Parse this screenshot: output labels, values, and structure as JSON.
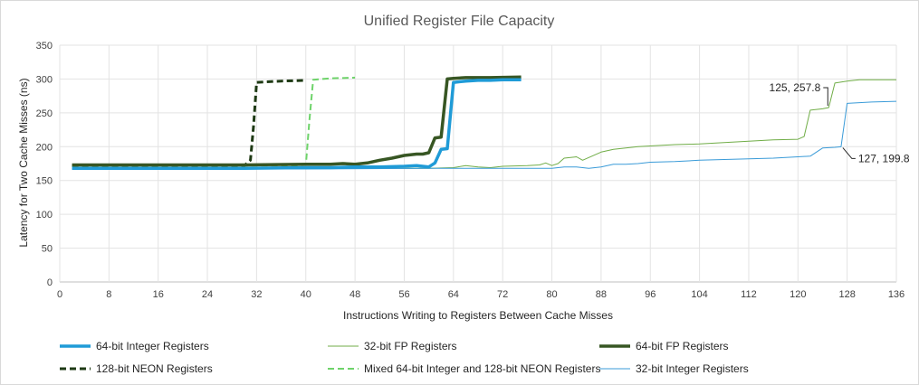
{
  "chart_data": {
    "type": "line",
    "title": "Unified Register File Capacity",
    "xlabel": "Instructions Writing to Registers Between Cache Misses",
    "ylabel": "Latency for Two Cache Misses (ns)",
    "xlim": [
      0,
      136
    ],
    "ylim": [
      0,
      350
    ],
    "x_ticks": [
      0,
      8,
      16,
      24,
      32,
      40,
      48,
      56,
      64,
      72,
      80,
      88,
      96,
      104,
      112,
      120,
      128,
      136
    ],
    "y_ticks": [
      0,
      50,
      100,
      150,
      200,
      250,
      300,
      350
    ],
    "grid": true,
    "legend_position": "bottom",
    "annotations": [
      {
        "text": "125, 257.8",
        "x": 125,
        "y": 257.8
      },
      {
        "text": "127, 199.8",
        "x": 127,
        "y": 199.8
      }
    ],
    "series": [
      {
        "name": "64-bit Integer Registers",
        "color": "#1f9bd7",
        "width": 3.5,
        "dash": "",
        "points": [
          [
            2,
            168
          ],
          [
            10,
            168
          ],
          [
            20,
            168
          ],
          [
            30,
            168
          ],
          [
            40,
            169
          ],
          [
            44,
            169
          ],
          [
            48,
            170
          ],
          [
            52,
            170
          ],
          [
            56,
            171
          ],
          [
            58,
            172
          ],
          [
            60,
            170
          ],
          [
            61,
            176
          ],
          [
            62,
            196
          ],
          [
            63,
            197
          ],
          [
            64,
            295
          ],
          [
            66,
            297
          ],
          [
            68,
            298
          ],
          [
            70,
            298
          ],
          [
            72,
            299
          ],
          [
            75,
            299
          ]
        ]
      },
      {
        "name": "32-bit FP Registers",
        "color": "#70ad47",
        "width": 1,
        "dash": "",
        "points": [
          [
            2,
            168
          ],
          [
            20,
            168
          ],
          [
            40,
            168
          ],
          [
            60,
            168
          ],
          [
            64,
            169
          ],
          [
            66,
            172
          ],
          [
            68,
            170
          ],
          [
            70,
            169
          ],
          [
            72,
            171
          ],
          [
            76,
            172
          ],
          [
            78,
            173
          ],
          [
            79,
            176
          ],
          [
            80,
            172
          ],
          [
            81,
            175
          ],
          [
            82,
            183
          ],
          [
            84,
            185
          ],
          [
            85,
            180
          ],
          [
            86,
            184
          ],
          [
            88,
            192
          ],
          [
            90,
            196
          ],
          [
            92,
            198
          ],
          [
            94,
            200
          ],
          [
            96,
            201
          ],
          [
            100,
            203
          ],
          [
            104,
            204
          ],
          [
            108,
            206
          ],
          [
            112,
            208
          ],
          [
            116,
            210
          ],
          [
            120,
            211
          ],
          [
            121,
            215
          ],
          [
            122,
            254
          ],
          [
            124,
            256
          ],
          [
            125,
            257.8
          ],
          [
            126,
            294
          ],
          [
            128,
            297
          ],
          [
            130,
            299
          ],
          [
            136,
            299
          ]
        ]
      },
      {
        "name": "64-bit FP Registers",
        "color": "#375623",
        "width": 3.5,
        "dash": "",
        "points": [
          [
            2,
            173
          ],
          [
            10,
            173
          ],
          [
            20,
            173
          ],
          [
            30,
            173
          ],
          [
            40,
            174
          ],
          [
            44,
            174
          ],
          [
            46,
            175
          ],
          [
            48,
            174
          ],
          [
            50,
            176
          ],
          [
            52,
            180
          ],
          [
            54,
            183
          ],
          [
            56,
            187
          ],
          [
            58,
            189
          ],
          [
            59,
            189
          ],
          [
            60,
            191
          ],
          [
            61,
            213
          ],
          [
            62,
            214
          ],
          [
            63,
            300
          ],
          [
            64,
            301
          ],
          [
            66,
            302
          ],
          [
            70,
            302
          ],
          [
            75,
            303
          ]
        ]
      },
      {
        "name": "128-bit NEON Registers",
        "color": "#1e3a14",
        "width": 3,
        "dash": "7,4",
        "points": [
          [
            2,
            172
          ],
          [
            10,
            171
          ],
          [
            20,
            171
          ],
          [
            28,
            170
          ],
          [
            29,
            171
          ],
          [
            30,
            172
          ],
          [
            31,
            180
          ],
          [
            31.5,
            230
          ],
          [
            32,
            295
          ],
          [
            34,
            296
          ],
          [
            36,
            297
          ],
          [
            40,
            298
          ]
        ]
      },
      {
        "name": "Mixed 64-bit Integer and 128-bit NEON Registers",
        "color": "#6ed36a",
        "width": 2,
        "dash": "7,4",
        "points": [
          [
            2,
            172
          ],
          [
            10,
            172
          ],
          [
            20,
            172
          ],
          [
            30,
            172
          ],
          [
            36,
            172
          ],
          [
            38,
            172
          ],
          [
            40,
            173
          ],
          [
            40.6,
            240
          ],
          [
            41.2,
            299
          ],
          [
            44,
            301
          ],
          [
            48,
            302
          ]
        ]
      },
      {
        "name": "32-bit Integer Registers",
        "color": "#3a9bd8",
        "width": 1,
        "dash": "",
        "points": [
          [
            2,
            167
          ],
          [
            20,
            167
          ],
          [
            40,
            167
          ],
          [
            60,
            168
          ],
          [
            64,
            168
          ],
          [
            74,
            168
          ],
          [
            80,
            168
          ],
          [
            82,
            170
          ],
          [
            84,
            170
          ],
          [
            86,
            168
          ],
          [
            88,
            170
          ],
          [
            90,
            174
          ],
          [
            92,
            174
          ],
          [
            94,
            175
          ],
          [
            96,
            177
          ],
          [
            100,
            178
          ],
          [
            104,
            180
          ],
          [
            108,
            181
          ],
          [
            112,
            182
          ],
          [
            116,
            183
          ],
          [
            120,
            185
          ],
          [
            122,
            186
          ],
          [
            124,
            198
          ],
          [
            126,
            199
          ],
          [
            127,
            199.8
          ],
          [
            128,
            264
          ],
          [
            130,
            265
          ],
          [
            132,
            266
          ],
          [
            136,
            267
          ]
        ]
      }
    ]
  }
}
